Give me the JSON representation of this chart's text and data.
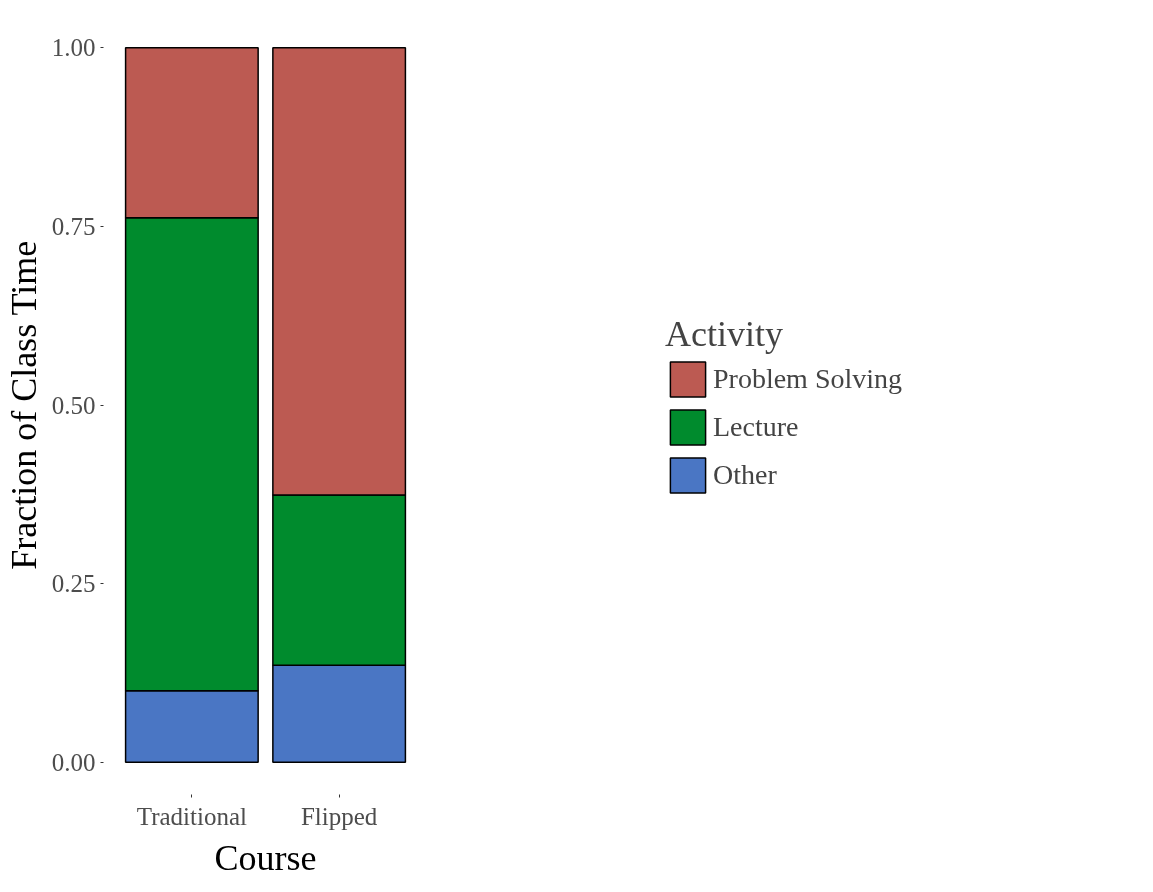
{
  "chart_data": {
    "type": "bar",
    "stacked": true,
    "xlabel": "Course",
    "ylabel": "Fraction of Class Time",
    "legend_title": "Activity",
    "legend": "right",
    "grid": false,
    "categories": [
      "Traditional",
      "Flipped"
    ],
    "series": [
      {
        "name": "Other",
        "color": "#4a76c4",
        "values": [
          0.1,
          0.136
        ]
      },
      {
        "name": "Lecture",
        "color": "#008b2d",
        "values": [
          0.662,
          0.238
        ]
      },
      {
        "name": "Problem Solving",
        "color": "#bc5a52",
        "values": [
          0.238,
          0.626
        ]
      }
    ],
    "ylim": [
      0,
      1
    ],
    "yticks": [
      {
        "value": 0,
        "label": "0.00"
      },
      {
        "value": 0.25,
        "label": "0.25"
      },
      {
        "value": 0.5,
        "label": "0.50"
      },
      {
        "value": 0.75,
        "label": "0.75"
      },
      {
        "value": 1,
        "label": "1.00"
      }
    ]
  }
}
